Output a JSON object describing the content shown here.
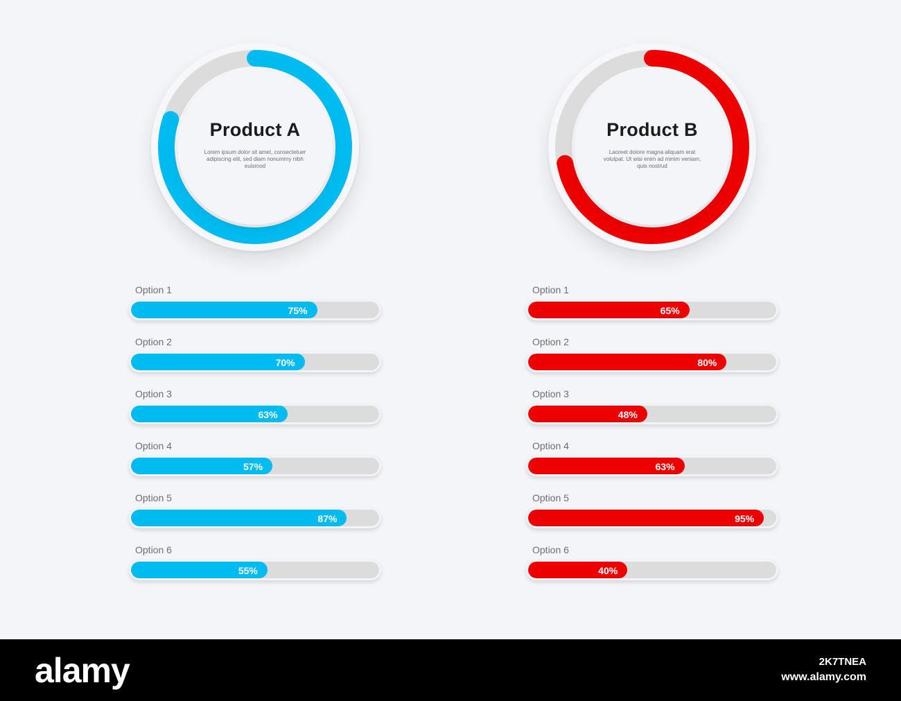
{
  "colors": {
    "product_a": "#00bbef",
    "product_b": "#ec0000",
    "track": "#dcdcdc",
    "background": "#f4f5f8"
  },
  "chart_data": [
    {
      "type": "pie",
      "title": "Product A",
      "subtitle": "Lorem ipsum dolor sit amet, consectetuer adipiscing elit, sed diam nonummy nibh euismod",
      "value_fraction": 0.8,
      "color": "#00bbef"
    },
    {
      "type": "bar",
      "orientation": "horizontal",
      "categories": [
        "Option 1",
        "Option 2",
        "Option 3",
        "Option 4",
        "Option 5",
        "Option 6"
      ],
      "values": [
        75,
        70,
        63,
        57,
        87,
        55
      ],
      "value_labels": [
        "75%",
        "70%",
        "63%",
        "57%",
        "87%",
        "55%"
      ],
      "xlim": [
        0,
        100
      ],
      "color": "#00bbef"
    },
    {
      "type": "pie",
      "title": "Product B",
      "subtitle": "Laoreet dolore magna aliquam erat volutpat. Ut wisi enim ad minim veniam, quis nostrud",
      "value_fraction": 0.72,
      "color": "#ec0000"
    },
    {
      "type": "bar",
      "orientation": "horizontal",
      "categories": [
        "Option 1",
        "Option 2",
        "Option 3",
        "Option 4",
        "Option 5",
        "Option 6"
      ],
      "values": [
        65,
        80,
        48,
        63,
        95,
        40
      ],
      "value_labels": [
        "65%",
        "80%",
        "48%",
        "63%",
        "95%",
        "40%"
      ],
      "xlim": [
        0,
        100
      ],
      "color": "#ec0000"
    }
  ],
  "footer": {
    "logo": "alamy",
    "image_code": "2K7TNEA",
    "url": "www.alamy.com"
  }
}
